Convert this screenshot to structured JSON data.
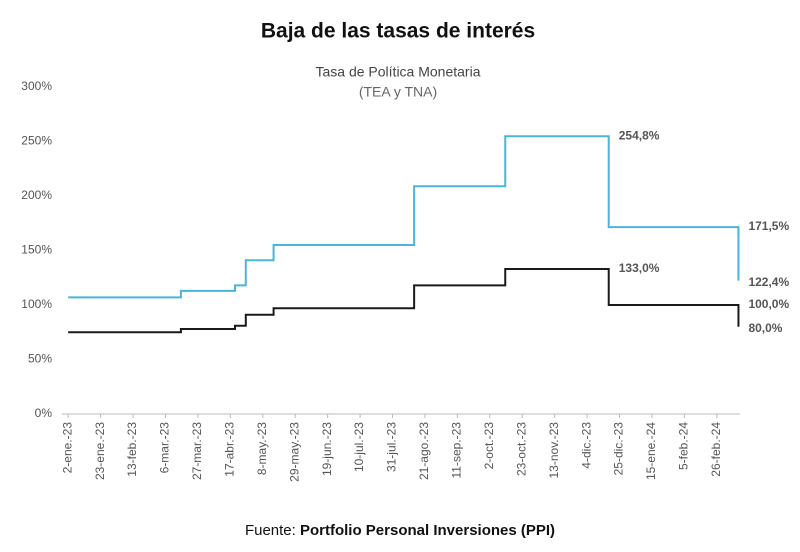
{
  "chart_data": {
    "type": "line",
    "title": "Baja de las tasas de interés",
    "subtitle": "Tasa de Política Monetaria",
    "subtitle2": "(TEA y TNA)",
    "source_prefix": "Fuente: ",
    "source": "Portfolio Personal Inversiones (PPI)",
    "step": "after",
    "x": [
      "2023-01-02",
      "2023-03-16",
      "2023-04-20",
      "2023-04-27",
      "2023-05-15",
      "2023-08-14",
      "2023-10-12",
      "2023-12-18",
      "2024-03-11"
    ],
    "series": [
      {
        "name": "TEA",
        "color": "#49b5dc",
        "values": [
          107,
          113,
          118,
          141,
          155,
          209,
          254.8,
          171.5,
          122.4
        ],
        "value_labels": [
          null,
          null,
          null,
          null,
          null,
          null,
          "254,8%",
          "171,5%",
          "122,4%"
        ]
      },
      {
        "name": "TNA",
        "color": "#1a1a1a",
        "values": [
          75,
          78,
          81,
          91,
          97,
          118,
          133,
          100,
          80
        ],
        "value_labels": [
          null,
          null,
          null,
          null,
          null,
          null,
          "133,0%",
          "100,0%",
          "80,0%"
        ]
      }
    ],
    "xlim": [
      "2022-12-29",
      "2024-03-12"
    ],
    "xticks": [
      {
        "value": "2023-01-02",
        "label": "2-ene.-23"
      },
      {
        "value": "2023-01-23",
        "label": "23-ene.-23"
      },
      {
        "value": "2023-02-13",
        "label": "13-feb.-23"
      },
      {
        "value": "2023-03-06",
        "label": "6-mar.-23"
      },
      {
        "value": "2023-03-27",
        "label": "27-mar.-23"
      },
      {
        "value": "2023-04-17",
        "label": "17-abr.-23"
      },
      {
        "value": "2023-05-08",
        "label": "8-may.-23"
      },
      {
        "value": "2023-05-29",
        "label": "29-may.-23"
      },
      {
        "value": "2023-06-19",
        "label": "19-jun.-23"
      },
      {
        "value": "2023-07-10",
        "label": "10-jul.-23"
      },
      {
        "value": "2023-07-31",
        "label": "31-jul.-23"
      },
      {
        "value": "2023-08-21",
        "label": "21-ago.-23"
      },
      {
        "value": "2023-09-11",
        "label": "11-sep.-23"
      },
      {
        "value": "2023-10-02",
        "label": "2-oct.-23"
      },
      {
        "value": "2023-10-23",
        "label": "23-oct.-23"
      },
      {
        "value": "2023-11-13",
        "label": "13-nov.-23"
      },
      {
        "value": "2023-12-04",
        "label": "4-dic.-23"
      },
      {
        "value": "2023-12-25",
        "label": "25-dic.-23"
      },
      {
        "value": "2024-01-15",
        "label": "15-ene.-24"
      },
      {
        "value": "2024-02-05",
        "label": "5-feb.-24"
      },
      {
        "value": "2024-02-26",
        "label": "26-feb.-24"
      }
    ],
    "ylim": [
      0,
      300
    ],
    "yticks": [
      {
        "value": 0,
        "label": "0%"
      },
      {
        "value": 50,
        "label": "50%"
      },
      {
        "value": 100,
        "label": "100%"
      },
      {
        "value": 150,
        "label": "150%"
      },
      {
        "value": 200,
        "label": "200%"
      },
      {
        "value": 250,
        "label": "250%"
      },
      {
        "value": 300,
        "label": "300%"
      }
    ],
    "grid": false
  }
}
